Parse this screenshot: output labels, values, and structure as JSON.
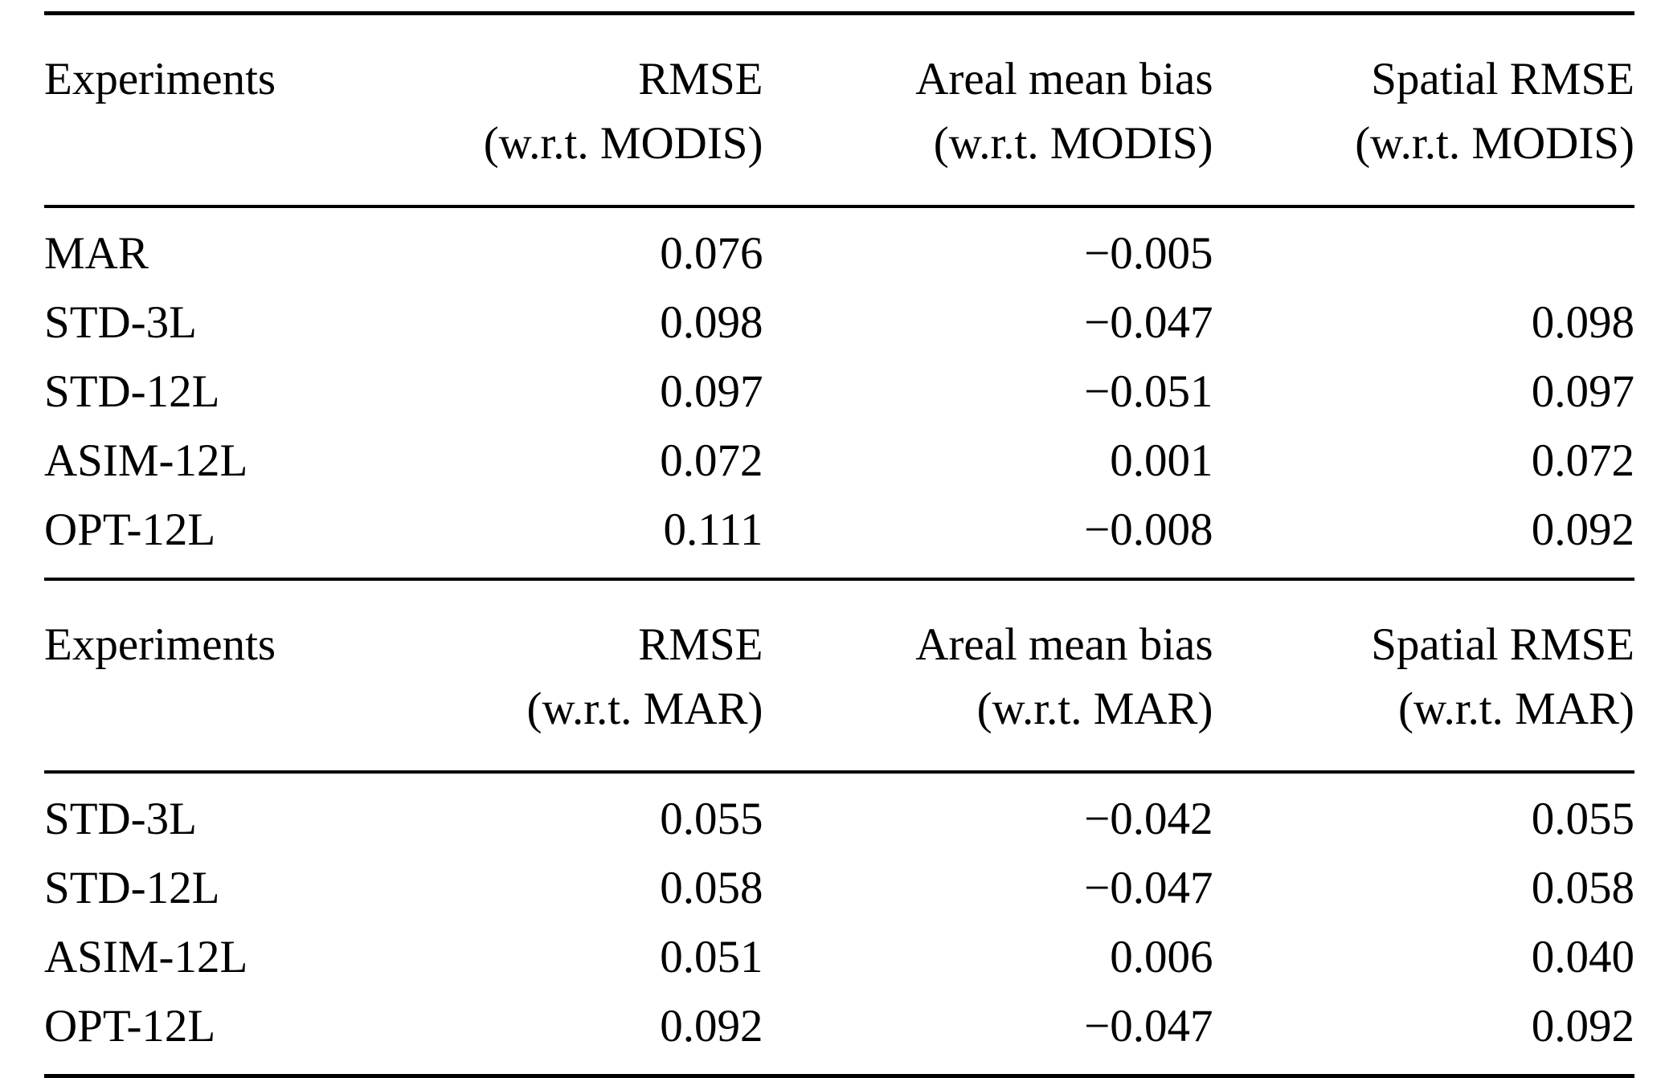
{
  "page": {
    "background": "#ffffff",
    "text_color": "#000000",
    "rule_color": "#000000"
  },
  "tables": [
    {
      "name": "comparison-wrt-modis",
      "columns": [
        {
          "line1": "Experiments",
          "line2": ""
        },
        {
          "line1": "RMSE",
          "line2": "(w.r.t. MODIS)"
        },
        {
          "line1": "Areal mean bias",
          "line2": "(w.r.t. MODIS)"
        },
        {
          "line1": "Spatial RMSE",
          "line2": "(w.r.t. MODIS)"
        }
      ],
      "rows": [
        [
          "MAR",
          "0.076",
          "−0.005",
          ""
        ],
        [
          "STD-3L",
          "0.098",
          "−0.047",
          "0.098"
        ],
        [
          "STD-12L",
          "0.097",
          "−0.051",
          "0.097"
        ],
        [
          "ASIM-12L",
          "0.072",
          "0.001",
          "0.072"
        ],
        [
          "OPT-12L",
          "0.111",
          "−0.008",
          "0.092"
        ]
      ]
    },
    {
      "name": "comparison-wrt-mar",
      "columns": [
        {
          "line1": "Experiments",
          "line2": ""
        },
        {
          "line1": "RMSE",
          "line2": "(w.r.t. MAR)"
        },
        {
          "line1": "Areal mean bias",
          "line2": "(w.r.t. MAR)"
        },
        {
          "line1": "Spatial RMSE",
          "line2": "(w.r.t. MAR)"
        }
      ],
      "rows": [
        [
          "STD-3L",
          "0.055",
          "−0.042",
          "0.055"
        ],
        [
          "STD-12L",
          "0.058",
          "−0.047",
          "0.058"
        ],
        [
          "ASIM-12L",
          "0.051",
          "0.006",
          "0.040"
        ],
        [
          "OPT-12L",
          "0.092",
          "−0.047",
          "0.092"
        ]
      ]
    }
  ]
}
